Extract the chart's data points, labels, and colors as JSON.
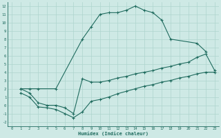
{
  "xlabel": "Humidex (Indice chaleur)",
  "bg_color": "#cee9e5",
  "grid_color": "#aed4ce",
  "line_color": "#1f6b5e",
  "xlim": [
    -0.5,
    23.5
  ],
  "ylim": [
    -2.5,
    12.5
  ],
  "xticks": [
    0,
    1,
    2,
    3,
    4,
    5,
    6,
    7,
    8,
    9,
    10,
    11,
    12,
    13,
    14,
    15,
    16,
    17,
    18,
    19,
    20,
    21,
    22,
    23
  ],
  "yticks": [
    -2,
    -1,
    0,
    1,
    2,
    3,
    4,
    5,
    6,
    7,
    8,
    9,
    10,
    11,
    12
  ],
  "line1_x": [
    1,
    2,
    3,
    5,
    8,
    9,
    10,
    11,
    12,
    13,
    14,
    15,
    16,
    17,
    18,
    21,
    22
  ],
  "line1_y": [
    2,
    2,
    2,
    2,
    8,
    9.5,
    11,
    11.2,
    11.2,
    11.5,
    12,
    11.5,
    11.2,
    10.3,
    8,
    7.5,
    6.5
  ],
  "line2_x": [
    1,
    2,
    3,
    4,
    5,
    6,
    7,
    8,
    9,
    10,
    11,
    12,
    13,
    14,
    15,
    16,
    17,
    18,
    19,
    20,
    21,
    22,
    23
  ],
  "line2_y": [
    2,
    1.5,
    0.3,
    0.0,
    0.0,
    -0.3,
    -1.0,
    3.2,
    2.8,
    2.8,
    3.0,
    3.3,
    3.5,
    3.8,
    4.0,
    4.2,
    4.5,
    4.7,
    5.0,
    5.2,
    5.8,
    6.2,
    4.2
  ],
  "line3_x": [
    1,
    2,
    3,
    4,
    5,
    6,
    7,
    8,
    9,
    10,
    11,
    12,
    13,
    14,
    15,
    16,
    17,
    18,
    19,
    20,
    21,
    22,
    23
  ],
  "line3_y": [
    1.5,
    1.0,
    -0.2,
    -0.3,
    -0.5,
    -1.0,
    -1.5,
    -0.8,
    0.5,
    0.7,
    1.0,
    1.4,
    1.7,
    2.0,
    2.3,
    2.5,
    2.8,
    3.0,
    3.3,
    3.5,
    3.8,
    4.0,
    4.0
  ]
}
